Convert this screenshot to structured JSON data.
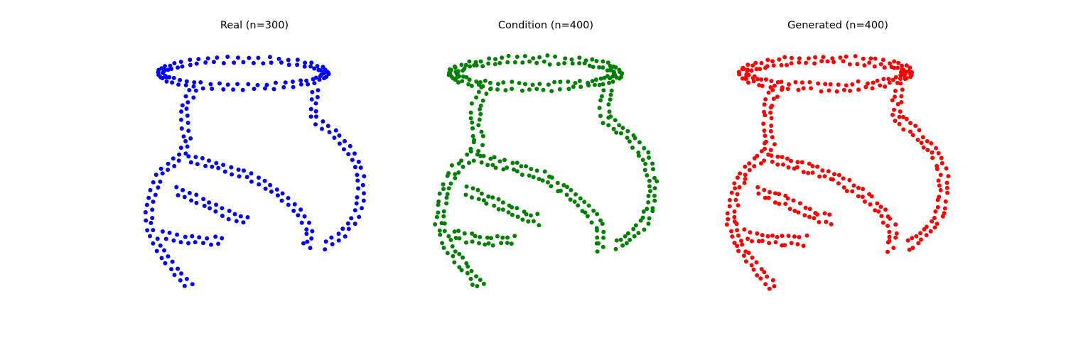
{
  "chart_data": [
    {
      "type": "scatter",
      "title": "Real (n=300)",
      "color": "#0000ff",
      "axis": "off",
      "grid": false,
      "xlim": [
        -2.5,
        6.0
      ],
      "ylim": [
        -5.0,
        2.9
      ],
      "shape": {
        "loop_center": [
          1.4,
          2.0
        ],
        "loop_rx": 2.6,
        "loop_ry": 0.4,
        "bands": [
          [
            [
              -0.1,
              1.6
            ],
            [
              -0.45,
              1.1
            ],
            [
              -0.45,
              0.5
            ],
            [
              -0.35,
              0.0
            ],
            [
              -0.55,
              -0.4
            ],
            [
              -1.2,
              -0.9
            ],
            [
              -1.5,
              -1.6
            ],
            [
              -1.6,
              -2.4
            ],
            [
              -1.3,
              -3.1
            ],
            [
              -0.8,
              -3.7
            ],
            [
              -0.25,
              -4.3
            ]
          ],
          [
            [
              3.7,
              1.6
            ],
            [
              3.6,
              1.1
            ],
            [
              3.6,
              0.7
            ],
            [
              4.2,
              0.3
            ],
            [
              4.8,
              -0.3
            ],
            [
              5.1,
              -1.0
            ],
            [
              5.1,
              -1.7
            ],
            [
              4.9,
              -2.3
            ],
            [
              4.4,
              -2.8
            ],
            [
              3.9,
              -3.1
            ]
          ],
          [
            [
              -0.4,
              -0.5
            ],
            [
              0.6,
              -0.7
            ],
            [
              1.6,
              -1.0
            ],
            [
              2.5,
              -1.5
            ],
            [
              3.1,
              -2.0
            ],
            [
              3.45,
              -2.5
            ],
            [
              3.5,
              -3.0
            ],
            [
              3.3,
              -3.1
            ]
          ],
          [
            [
              -0.8,
              -1.4
            ],
            [
              0.2,
              -1.8
            ],
            [
              1.1,
              -2.2
            ],
            [
              1.6,
              -2.3
            ]
          ],
          [
            [
              -1.2,
              -2.7
            ],
            [
              -0.5,
              -2.85
            ],
            [
              0.3,
              -2.9
            ],
            [
              0.8,
              -2.9
            ]
          ]
        ]
      },
      "n_points": 300
    },
    {
      "type": "scatter",
      "title": "Condition (n=400)",
      "color": "#008000",
      "axis": "off",
      "grid": false,
      "xlim": [
        -2.5,
        6.0
      ],
      "ylim": [
        -5.0,
        2.9
      ],
      "shape": {
        "loop_center": [
          1.4,
          2.0
        ],
        "loop_rx": 2.6,
        "loop_ry": 0.4,
        "bands": [
          [
            [
              -0.1,
              1.6
            ],
            [
              -0.45,
              1.1
            ],
            [
              -0.45,
              0.5
            ],
            [
              -0.35,
              0.0
            ],
            [
              -0.55,
              -0.4
            ],
            [
              -1.2,
              -0.9
            ],
            [
              -1.5,
              -1.6
            ],
            [
              -1.6,
              -2.4
            ],
            [
              -1.3,
              -3.1
            ],
            [
              -0.8,
              -3.7
            ],
            [
              -0.25,
              -4.3
            ]
          ],
          [
            [
              3.7,
              1.6
            ],
            [
              3.6,
              1.1
            ],
            [
              3.6,
              0.7
            ],
            [
              4.2,
              0.3
            ],
            [
              4.8,
              -0.3
            ],
            [
              5.1,
              -1.0
            ],
            [
              5.1,
              -1.7
            ],
            [
              4.9,
              -2.3
            ],
            [
              4.4,
              -2.8
            ],
            [
              3.9,
              -3.1
            ]
          ],
          [
            [
              -0.4,
              -0.5
            ],
            [
              0.6,
              -0.7
            ],
            [
              1.6,
              -1.0
            ],
            [
              2.5,
              -1.5
            ],
            [
              3.1,
              -2.0
            ],
            [
              3.45,
              -2.5
            ],
            [
              3.5,
              -3.0
            ],
            [
              3.3,
              -3.1
            ]
          ],
          [
            [
              -0.8,
              -1.4
            ],
            [
              0.2,
              -1.8
            ],
            [
              1.1,
              -2.2
            ],
            [
              1.6,
              -2.3
            ]
          ],
          [
            [
              -1.2,
              -2.7
            ],
            [
              -0.5,
              -2.85
            ],
            [
              0.3,
              -2.9
            ],
            [
              0.8,
              -2.9
            ]
          ]
        ]
      },
      "n_points": 400
    },
    {
      "type": "scatter",
      "title": "Generated (n=400)",
      "color": "#ff0000",
      "axis": "off",
      "grid": false,
      "xlim": [
        -2.5,
        6.0
      ],
      "ylim": [
        -5.0,
        2.9
      ],
      "shape": {
        "loop_center": [
          1.4,
          2.0
        ],
        "loop_rx": 2.6,
        "loop_ry": 0.4,
        "bands": [
          [
            [
              -0.1,
              1.6
            ],
            [
              -0.45,
              1.1
            ],
            [
              -0.45,
              0.5
            ],
            [
              -0.35,
              0.0
            ],
            [
              -0.55,
              -0.4
            ],
            [
              -1.2,
              -0.9
            ],
            [
              -1.5,
              -1.6
            ],
            [
              -1.6,
              -2.4
            ],
            [
              -1.3,
              -3.1
            ],
            [
              -0.8,
              -3.7
            ],
            [
              -0.25,
              -4.3
            ]
          ],
          [
            [
              3.7,
              1.6
            ],
            [
              3.6,
              1.1
            ],
            [
              3.6,
              0.7
            ],
            [
              4.2,
              0.3
            ],
            [
              4.8,
              -0.3
            ],
            [
              5.1,
              -1.0
            ],
            [
              5.1,
              -1.7
            ],
            [
              4.9,
              -2.3
            ],
            [
              4.4,
              -2.8
            ],
            [
              3.9,
              -3.1
            ]
          ],
          [
            [
              -0.4,
              -0.5
            ],
            [
              0.6,
              -0.7
            ],
            [
              1.6,
              -1.0
            ],
            [
              2.5,
              -1.5
            ],
            [
              3.1,
              -2.0
            ],
            [
              3.45,
              -2.5
            ],
            [
              3.5,
              -3.0
            ],
            [
              3.3,
              -3.1
            ]
          ],
          [
            [
              -0.8,
              -1.4
            ],
            [
              0.2,
              -1.8
            ],
            [
              1.1,
              -2.2
            ],
            [
              1.6,
              -2.3
            ]
          ],
          [
            [
              -1.2,
              -2.7
            ],
            [
              -0.5,
              -2.85
            ],
            [
              0.3,
              -2.9
            ],
            [
              0.8,
              -2.9
            ]
          ]
        ]
      },
      "n_points": 400
    }
  ]
}
